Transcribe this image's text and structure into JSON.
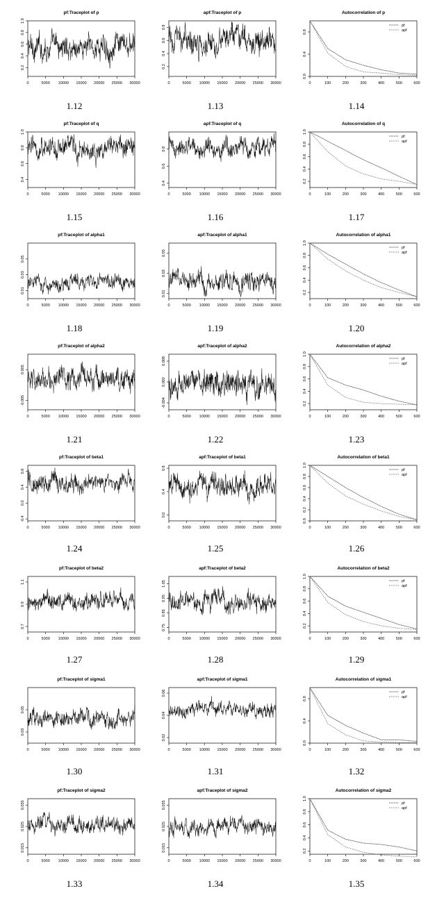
{
  "chart_data": [
    {
      "number": "1.12",
      "type": "line",
      "title": "pf:Traceplot of p",
      "xticks": [
        "0",
        "5000",
        "10000",
        "15000",
        "20000",
        "25000",
        "30000"
      ],
      "xlim": [
        0,
        30000
      ],
      "yticks": [
        "0.2",
        "0.4",
        "0.6",
        "0.8",
        "1.0"
      ],
      "ylim": [
        0.05,
        1.0
      ],
      "series": [
        {
          "mean": 0.55,
          "spread": 0.22
        }
      ]
    },
    {
      "number": "1.13",
      "type": "line",
      "title": "apf:Traceplot of p",
      "xticks": [
        "0",
        "5000",
        "10000",
        "15000",
        "20000",
        "25000",
        "30000"
      ],
      "xlim": [
        0,
        30000
      ],
      "yticks": [
        "0.2",
        "0.4",
        "0.6",
        "0.8"
      ],
      "ylim": [
        0.05,
        0.9
      ],
      "series": [
        {
          "mean": 0.6,
          "spread": 0.2
        }
      ]
    },
    {
      "number": "1.14",
      "type": "line",
      "title": "Autocorrelation of p",
      "xticks": [
        "0",
        "100",
        "200",
        "300",
        "400",
        "500",
        "600"
      ],
      "xlim": [
        0,
        600
      ],
      "yticks": [
        "0.0",
        "0.4",
        "0.8"
      ],
      "ylim": [
        0.0,
        1.0
      ],
      "legend": [
        "pf",
        "apf"
      ],
      "series": [
        {
          "name": "pf",
          "x": [
            0,
            100,
            200,
            300,
            400,
            500,
            600
          ],
          "y": [
            1.0,
            0.5,
            0.3,
            0.2,
            0.12,
            0.06,
            0.04
          ]
        },
        {
          "name": "apf",
          "x": [
            0,
            100,
            200,
            300,
            400,
            500,
            600
          ],
          "y": [
            1.0,
            0.42,
            0.18,
            0.08,
            0.06,
            0.03,
            0.02
          ]
        }
      ]
    },
    {
      "number": "1.15",
      "type": "line",
      "title": "pf:Traceplot of q",
      "xticks": [
        "0",
        "5000",
        "10000",
        "15000",
        "20000",
        "25000",
        "30000"
      ],
      "xlim": [
        0,
        30000
      ],
      "yticks": [
        "0.4",
        "0.6",
        "0.8",
        "1.0"
      ],
      "ylim": [
        0.3,
        1.0
      ],
      "series": [
        {
          "mean": 0.8,
          "spread": 0.15
        }
      ]
    },
    {
      "number": "1.16",
      "type": "line",
      "title": "apf:Traceplot of q",
      "xticks": [
        "0",
        "5000",
        "10000",
        "15000",
        "20000",
        "25000",
        "30000"
      ],
      "xlim": [
        0,
        30000
      ],
      "yticks": [
        "0.4",
        "0.6",
        "0.8"
      ],
      "ylim": [
        0.35,
        1.0
      ],
      "series": [
        {
          "mean": 0.82,
          "spread": 0.12
        }
      ]
    },
    {
      "number": "1.17",
      "type": "line",
      "title": "Autocorrelation of q",
      "xticks": [
        "0",
        "100",
        "200",
        "300",
        "400",
        "500",
        "600"
      ],
      "xlim": [
        0,
        600
      ],
      "yticks": [
        "0.2",
        "0.4",
        "0.6",
        "0.8",
        "1.0"
      ],
      "ylim": [
        0.1,
        1.0
      ],
      "legend": [
        "pf",
        "apf"
      ],
      "series": [
        {
          "name": "pf",
          "x": [
            0,
            100,
            200,
            300,
            400,
            500,
            600
          ],
          "y": [
            1.0,
            0.85,
            0.7,
            0.55,
            0.42,
            0.28,
            0.15
          ]
        },
        {
          "name": "apf",
          "x": [
            0,
            100,
            200,
            300,
            400,
            500,
            600
          ],
          "y": [
            1.0,
            0.68,
            0.45,
            0.32,
            0.24,
            0.2,
            0.15
          ]
        }
      ]
    },
    {
      "number": "1.18",
      "type": "line",
      "title": "pf:Traceplot of alpha1",
      "xticks": [
        "0",
        "5000",
        "10000",
        "15000",
        "20000",
        "25000",
        "30000"
      ],
      "xlim": [
        0,
        30000
      ],
      "yticks": [
        "0.01",
        "0.03",
        "0.05"
      ],
      "ylim": [
        0.0,
        0.07
      ],
      "series": [
        {
          "mean": 0.02,
          "spread": 0.01
        }
      ]
    },
    {
      "number": "1.19",
      "type": "line",
      "title": "apf:Traceplot of alpha1",
      "xticks": [
        "0",
        "5000",
        "10000",
        "15000",
        "20000",
        "25000",
        "30000"
      ],
      "xlim": [
        0,
        30000
      ],
      "yticks": [
        "0.01",
        "0.03",
        "0.05"
      ],
      "ylim": [
        0.005,
        0.06
      ],
      "series": [
        {
          "mean": 0.022,
          "spread": 0.01
        }
      ]
    },
    {
      "number": "1.20",
      "type": "line",
      "title": "Autocorrelation of alpha1",
      "xticks": [
        "0",
        "100",
        "200",
        "300",
        "400",
        "500",
        "600"
      ],
      "xlim": [
        0,
        600
      ],
      "yticks": [
        "0.2",
        "0.4",
        "0.6",
        "0.8",
        "1.0"
      ],
      "ylim": [
        0.1,
        1.0
      ],
      "legend": [
        "pf",
        "apf"
      ],
      "series": [
        {
          "name": "pf",
          "x": [
            0,
            100,
            200,
            300,
            400,
            500,
            600
          ],
          "y": [
            1.0,
            0.82,
            0.66,
            0.5,
            0.36,
            0.24,
            0.13
          ]
        },
        {
          "name": "apf",
          "x": [
            0,
            100,
            200,
            300,
            400,
            500,
            600
          ],
          "y": [
            1.0,
            0.74,
            0.55,
            0.4,
            0.28,
            0.2,
            0.13
          ]
        }
      ]
    },
    {
      "number": "1.21",
      "type": "line",
      "title": "pf:Traceplot of alpha2",
      "xticks": [
        "0",
        "5000",
        "10000",
        "15000",
        "20000",
        "25000",
        "30000"
      ],
      "xlim": [
        0,
        30000
      ],
      "yticks": [
        "-0.005",
        "0.005"
      ],
      "ylim": [
        -0.008,
        0.01
      ],
      "series": [
        {
          "mean": 0.002,
          "spread": 0.004
        }
      ]
    },
    {
      "number": "1.22",
      "type": "line",
      "title": "apf:Traceplot of alpha2",
      "xticks": [
        "0",
        "5000",
        "10000",
        "15000",
        "20000",
        "25000",
        "30000"
      ],
      "xlim": [
        0,
        30000
      ],
      "yticks": [
        "-0.004",
        "0.002",
        "0.008"
      ],
      "ylim": [
        -0.006,
        0.01
      ],
      "series": [
        {
          "mean": 0.002,
          "spread": 0.004
        }
      ]
    },
    {
      "number": "1.23",
      "type": "line",
      "title": "Autocorrelation of alpha2",
      "xticks": [
        "0",
        "100",
        "200",
        "300",
        "400",
        "500",
        "600"
      ],
      "xlim": [
        0,
        600
      ],
      "yticks": [
        "0.2",
        "0.4",
        "0.6",
        "0.8",
        "1.0"
      ],
      "ylim": [
        0.1,
        1.0
      ],
      "legend": [
        "pf",
        "apf"
      ],
      "series": [
        {
          "name": "pf",
          "x": [
            0,
            100,
            200,
            300,
            400,
            500,
            600
          ],
          "y": [
            1.0,
            0.62,
            0.5,
            0.42,
            0.32,
            0.24,
            0.18
          ]
        },
        {
          "name": "apf",
          "x": [
            0,
            100,
            200,
            300,
            400,
            500,
            600
          ],
          "y": [
            1.0,
            0.5,
            0.3,
            0.22,
            0.2,
            0.19,
            0.18
          ]
        }
      ]
    },
    {
      "number": "1.24",
      "type": "line",
      "title": "pf:Traceplot of beta1",
      "xticks": [
        "0",
        "5000",
        "10000",
        "15000",
        "20000",
        "25000",
        "30000"
      ],
      "xlim": [
        0,
        30000
      ],
      "yticks": [
        "-0.4",
        "0.0",
        "0.4",
        "0.8"
      ],
      "ylim": [
        -0.45,
        0.95
      ],
      "series": [
        {
          "mean": 0.5,
          "spread": 0.25
        }
      ]
    },
    {
      "number": "1.25",
      "type": "line",
      "title": "apf:Traceplot of beta1",
      "xticks": [
        "0",
        "5000",
        "10000",
        "15000",
        "20000",
        "25000",
        "30000"
      ],
      "xlim": [
        0,
        30000
      ],
      "yticks": [
        "0.0",
        "0.4",
        "0.8"
      ],
      "ylim": [
        -0.1,
        0.85
      ],
      "series": [
        {
          "mean": 0.5,
          "spread": 0.22
        }
      ]
    },
    {
      "number": "1.26",
      "type": "line",
      "title": "Autocorrelation of beta1",
      "xticks": [
        "0",
        "100",
        "200",
        "300",
        "400",
        "500",
        "600"
      ],
      "xlim": [
        0,
        600
      ],
      "yticks": [
        "0.0",
        "0.2",
        "0.4",
        "0.6",
        "0.8",
        "1.0"
      ],
      "ylim": [
        0.0,
        1.0
      ],
      "legend": [
        "pf",
        "apf"
      ],
      "series": [
        {
          "name": "pf",
          "x": [
            0,
            100,
            200,
            300,
            400,
            500,
            600
          ],
          "y": [
            1.0,
            0.8,
            0.6,
            0.42,
            0.26,
            0.12,
            0.02
          ]
        },
        {
          "name": "apf",
          "x": [
            0,
            100,
            200,
            300,
            400,
            500,
            600
          ],
          "y": [
            1.0,
            0.68,
            0.45,
            0.3,
            0.18,
            0.08,
            0.02
          ]
        }
      ]
    },
    {
      "number": "1.27",
      "type": "line",
      "title": "pf:Traceplot of beta2",
      "xticks": [
        "0",
        "5000",
        "10000",
        "15000",
        "20000",
        "25000",
        "30000"
      ],
      "xlim": [
        0,
        30000
      ],
      "yticks": [
        "0.7",
        "0.9",
        "1.1"
      ],
      "ylim": [
        0.65,
        1.15
      ],
      "series": [
        {
          "mean": 0.93,
          "spread": 0.08
        }
      ]
    },
    {
      "number": "1.28",
      "type": "line",
      "title": "apf:Traceplot of beta2",
      "xticks": [
        "0",
        "5000",
        "10000",
        "15000",
        "20000",
        "25000",
        "30000"
      ],
      "xlim": [
        0,
        30000
      ],
      "yticks": [
        "0.75",
        "0.85",
        "0.95",
        "1.05"
      ],
      "ylim": [
        0.72,
        1.1
      ],
      "series": [
        {
          "mean": 0.93,
          "spread": 0.07
        }
      ]
    },
    {
      "number": "1.29",
      "type": "line",
      "title": "Autocorrelation of beta2",
      "xticks": [
        "0",
        "100",
        "200",
        "300",
        "400",
        "500",
        "600"
      ],
      "xlim": [
        0,
        600
      ],
      "yticks": [
        "0.2",
        "0.4",
        "0.6",
        "0.8",
        "1.0"
      ],
      "ylim": [
        0.1,
        1.0
      ],
      "legend": [
        "pf",
        "apf"
      ],
      "series": [
        {
          "name": "pf",
          "x": [
            0,
            100,
            200,
            300,
            400,
            500,
            600
          ],
          "y": [
            1.0,
            0.68,
            0.52,
            0.42,
            0.32,
            0.22,
            0.15
          ]
        },
        {
          "name": "apf",
          "x": [
            0,
            100,
            200,
            300,
            400,
            500,
            600
          ],
          "y": [
            1.0,
            0.58,
            0.38,
            0.27,
            0.2,
            0.16,
            0.14
          ]
        }
      ]
    },
    {
      "number": "1.30",
      "type": "line",
      "title": "pf:Traceplot of sigma1",
      "xticks": [
        "0",
        "5000",
        "10000",
        "15000",
        "20000",
        "25000",
        "30000"
      ],
      "xlim": [
        0,
        30000
      ],
      "yticks": [
        "0.03",
        "0.05"
      ],
      "ylim": [
        0.02,
        0.07
      ],
      "series": [
        {
          "mean": 0.042,
          "spread": 0.008
        }
      ]
    },
    {
      "number": "1.31",
      "type": "line",
      "title": "apf:Traceplot of sigma1",
      "xticks": [
        "0",
        "5000",
        "10000",
        "15000",
        "20000",
        "25000",
        "30000"
      ],
      "xlim": [
        0,
        30000
      ],
      "yticks": [
        "0.02",
        "0.04",
        "0.06"
      ],
      "ylim": [
        0.015,
        0.065
      ],
      "series": [
        {
          "mean": 0.045,
          "spread": 0.007
        }
      ]
    },
    {
      "number": "1.32",
      "type": "line",
      "title": "Autocorrelation of sigma1",
      "xticks": [
        "0",
        "100",
        "200",
        "300",
        "400",
        "500",
        "600"
      ],
      "xlim": [
        0,
        600
      ],
      "yticks": [
        "0.0",
        "0.4",
        "0.8"
      ],
      "ylim": [
        0.0,
        1.0
      ],
      "legend": [
        "pf",
        "apf"
      ],
      "series": [
        {
          "name": "pf",
          "x": [
            0,
            100,
            200,
            300,
            400,
            500,
            600
          ],
          "y": [
            1.0,
            0.5,
            0.32,
            0.18,
            0.06,
            0.06,
            0.03
          ]
        },
        {
          "name": "apf",
          "x": [
            0,
            100,
            200,
            300,
            400,
            500,
            600
          ],
          "y": [
            1.0,
            0.35,
            0.15,
            0.04,
            0.02,
            0.01,
            0.01
          ]
        }
      ]
    },
    {
      "number": "1.33",
      "type": "line",
      "title": "pf:Traceplot of sigma2",
      "xticks": [
        "0",
        "5000",
        "10000",
        "15000",
        "20000",
        "25000",
        "30000"
      ],
      "xlim": [
        0,
        30000
      ],
      "yticks": [
        "0.015",
        "0.025",
        "0.035"
      ],
      "ylim": [
        0.012,
        0.038
      ],
      "series": [
        {
          "mean": 0.026,
          "spread": 0.004
        }
      ]
    },
    {
      "number": "1.34",
      "type": "line",
      "title": "apf:Traceplot of sigma2",
      "xticks": [
        "0",
        "5000",
        "10000",
        "15000",
        "20000",
        "25000",
        "30000"
      ],
      "xlim": [
        0,
        30000
      ],
      "yticks": [
        "0.015",
        "0.025",
        "0.035"
      ],
      "ylim": [
        0.012,
        0.038
      ],
      "series": [
        {
          "mean": 0.025,
          "spread": 0.004
        }
      ]
    },
    {
      "number": "1.35",
      "type": "line",
      "title": "Autocorrelation of sigma2",
      "xticks": [
        "0",
        "100",
        "200",
        "300",
        "400",
        "500",
        "600"
      ],
      "xlim": [
        0,
        600
      ],
      "yticks": [
        "0.2",
        "0.4",
        "0.6",
        "0.8",
        "1.0"
      ],
      "ylim": [
        0.15,
        1.0
      ],
      "legend": [
        "pf",
        "apf"
      ],
      "series": [
        {
          "name": "pf",
          "x": [
            0,
            100,
            200,
            300,
            400,
            500,
            600
          ],
          "y": [
            1.0,
            0.52,
            0.38,
            0.32,
            0.3,
            0.26,
            0.2
          ]
        },
        {
          "name": "apf",
          "x": [
            0,
            100,
            200,
            300,
            400,
            500,
            600
          ],
          "y": [
            1.0,
            0.45,
            0.26,
            0.18,
            0.14,
            0.12,
            0.11
          ]
        }
      ]
    }
  ]
}
